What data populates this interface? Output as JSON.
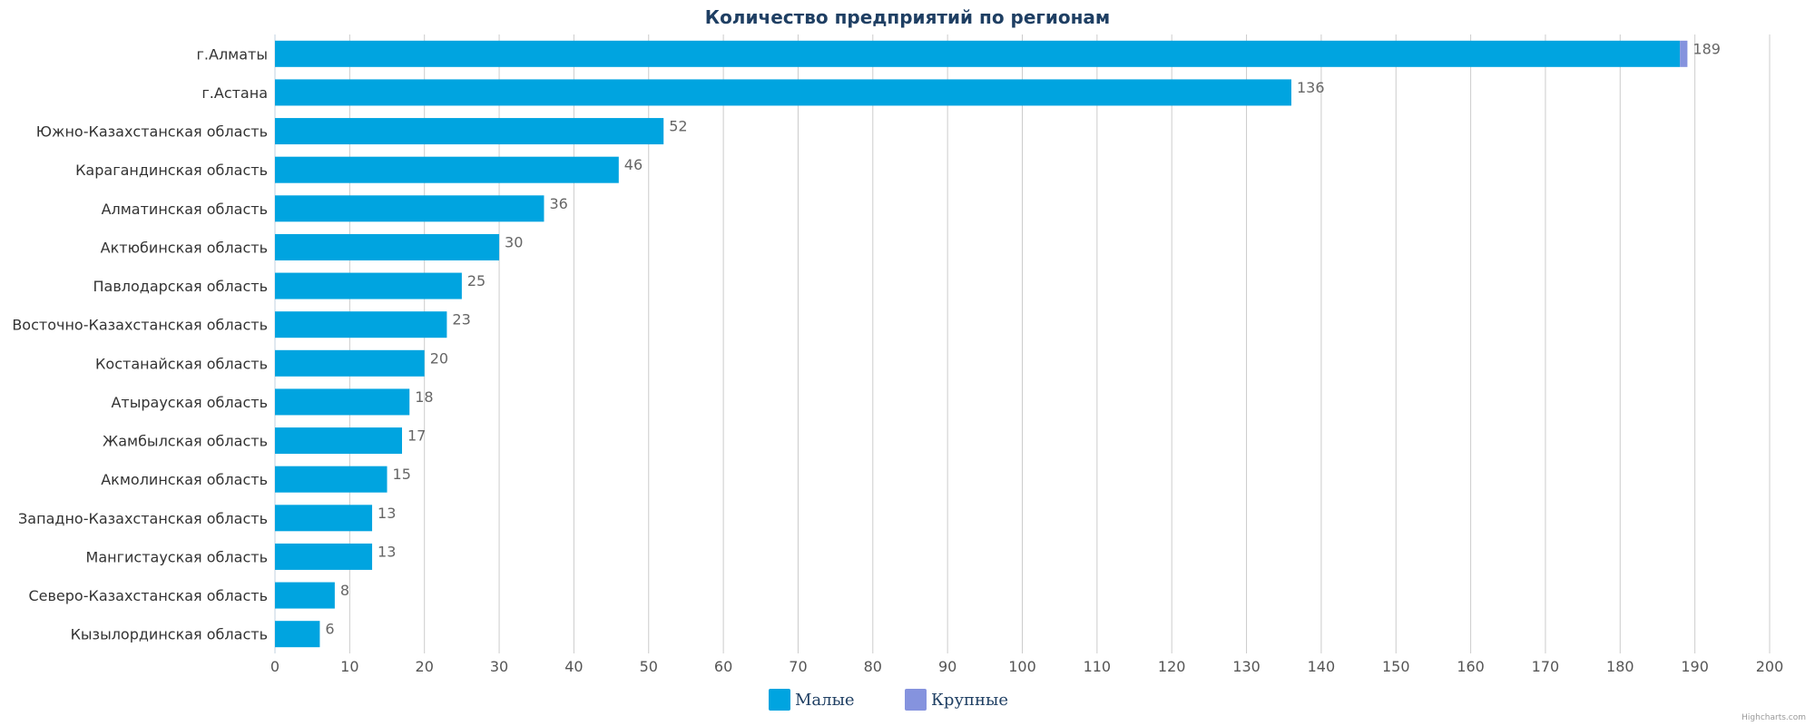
{
  "chart_data": {
    "type": "bar",
    "orientation": "horizontal",
    "stacked": true,
    "title": "Количество предприятий по регионам",
    "categories": [
      "г.Алматы",
      "г.Астана",
      "Южно-Казахстанская область",
      "Карагандинская область",
      "Алматинская область",
      "Актюбинская область",
      "Павлодарская область",
      "Восточно-Казахстанская область",
      "Костанайская область",
      "Атырауская область",
      "Жамбылская область",
      "Акмолинская область",
      "Западно-Казахстанская область",
      "Мангистауская область",
      "Северо-Казахстанская область",
      "Кызылординская область"
    ],
    "series": [
      {
        "name": "Малые",
        "color": "#00a4e0",
        "values": [
          188,
          136,
          52,
          46,
          36,
          30,
          25,
          23,
          20,
          18,
          17,
          15,
          13,
          13,
          8,
          6
        ]
      },
      {
        "name": "Крупные",
        "color": "#8593de",
        "values": [
          1,
          0,
          0,
          0,
          0,
          0,
          0,
          0,
          0,
          0,
          0,
          0,
          0,
          0,
          0,
          0
        ]
      }
    ],
    "totals": [
      "189",
      "136",
      "52",
      "46",
      "36",
      "30",
      "25",
      "23",
      "20",
      "18",
      "17",
      "15",
      "13",
      "13",
      "8",
      "6"
    ],
    "xlim": [
      0,
      200
    ],
    "x_ticks": [
      "0",
      "10",
      "20",
      "30",
      "40",
      "50",
      "60",
      "70",
      "80",
      "90",
      "100",
      "110",
      "120",
      "130",
      "140",
      "150",
      "160",
      "170",
      "180",
      "190",
      "200"
    ],
    "grid": true,
    "legend_position": "bottom-center",
    "title_color": "#1f3f63",
    "grid_color": "#cccccc",
    "credits": "Highcharts.com"
  }
}
